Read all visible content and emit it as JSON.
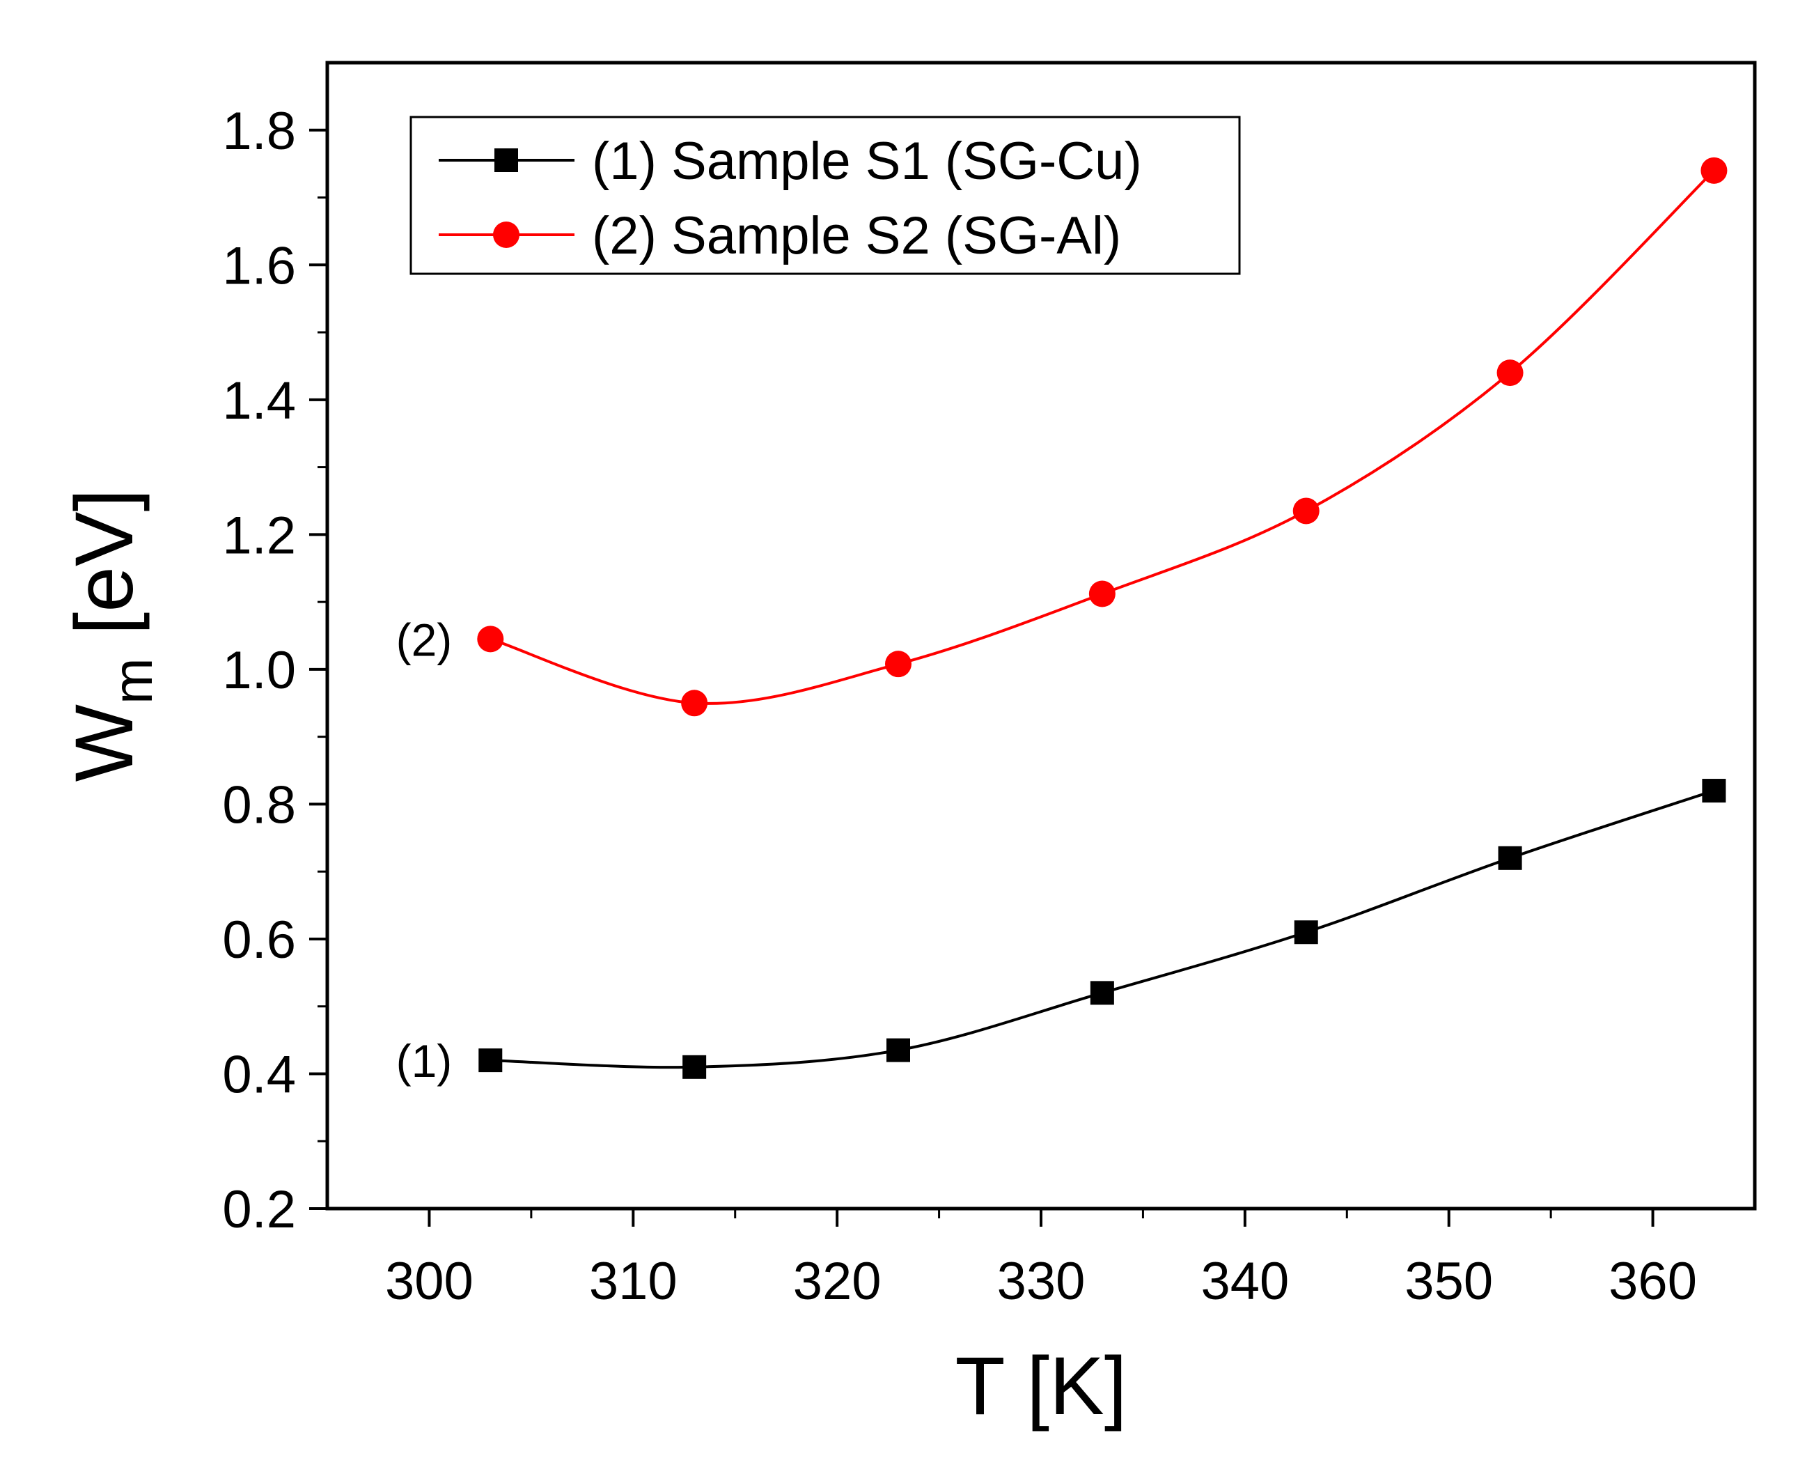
{
  "chart_data": {
    "type": "line",
    "title": "",
    "xlabel": "T [K]",
    "ylabel_main": "W",
    "ylabel_sub": "m",
    "ylabel_unit": " [eV]",
    "xlim": [
      295,
      365
    ],
    "ylim": [
      0.2,
      1.9
    ],
    "xticks": [
      300,
      310,
      320,
      330,
      340,
      350,
      360
    ],
    "xtick_labels": [
      "300",
      "310",
      "320",
      "330",
      "340",
      "350",
      "360"
    ],
    "yticks": [
      0.2,
      0.4,
      0.6,
      0.8,
      1.0,
      1.2,
      1.4,
      1.6,
      1.8
    ],
    "ytick_labels": [
      "0.2",
      "0.4",
      "0.6",
      "0.8",
      "1.0",
      "1.2",
      "1.4",
      "1.6",
      "1.8"
    ],
    "x": [
      303,
      313,
      323,
      333,
      343,
      353,
      363
    ],
    "series": [
      {
        "name": "(1) Sample S1 (SG-Cu)",
        "annotation": "(1)",
        "color": "#000000",
        "marker": "square",
        "values": [
          0.42,
          0.41,
          0.435,
          0.52,
          0.61,
          0.72,
          0.82
        ]
      },
      {
        "name": "(2) Sample S2 (SG-Al)",
        "annotation": "(2)",
        "color": "#ff0000",
        "marker": "circle",
        "values": [
          1.045,
          0.95,
          1.008,
          1.112,
          1.235,
          1.44,
          1.74
        ]
      }
    ],
    "legend_position": "top-left",
    "grid": false
  }
}
